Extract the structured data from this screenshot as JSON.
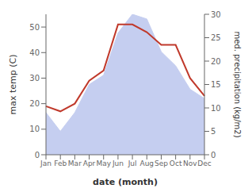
{
  "chart_data": {
    "type": "line",
    "xlabel": "date (month)",
    "ylabel": "max temp (C)",
    "y2label": "med. precipitation (kg/m2)",
    "categories": [
      "Jan",
      "Feb",
      "Mar",
      "Apr",
      "May",
      "Jun",
      "Jul",
      "Aug",
      "Sep",
      "Oct",
      "Nov",
      "Dec"
    ],
    "series": [
      {
        "type": "area",
        "axis": "y2",
        "color": "#c5cef0",
        "values": [
          9,
          5,
          9,
          15,
          17,
          26,
          30,
          29,
          22,
          19,
          14,
          12
        ]
      },
      {
        "type": "line",
        "axis": "y",
        "color": "#c0392b",
        "values": [
          19,
          17,
          20,
          29,
          33,
          51,
          51,
          48,
          43,
          43,
          30,
          23
        ]
      }
    ],
    "ylim": [
      0,
      55
    ],
    "yticks": [
      0,
      10,
      20,
      30,
      40,
      50
    ],
    "y2lim": [
      0,
      30
    ],
    "y2ticks": [
      0,
      5,
      10,
      15,
      20,
      25,
      30
    ],
    "grid": false
  }
}
